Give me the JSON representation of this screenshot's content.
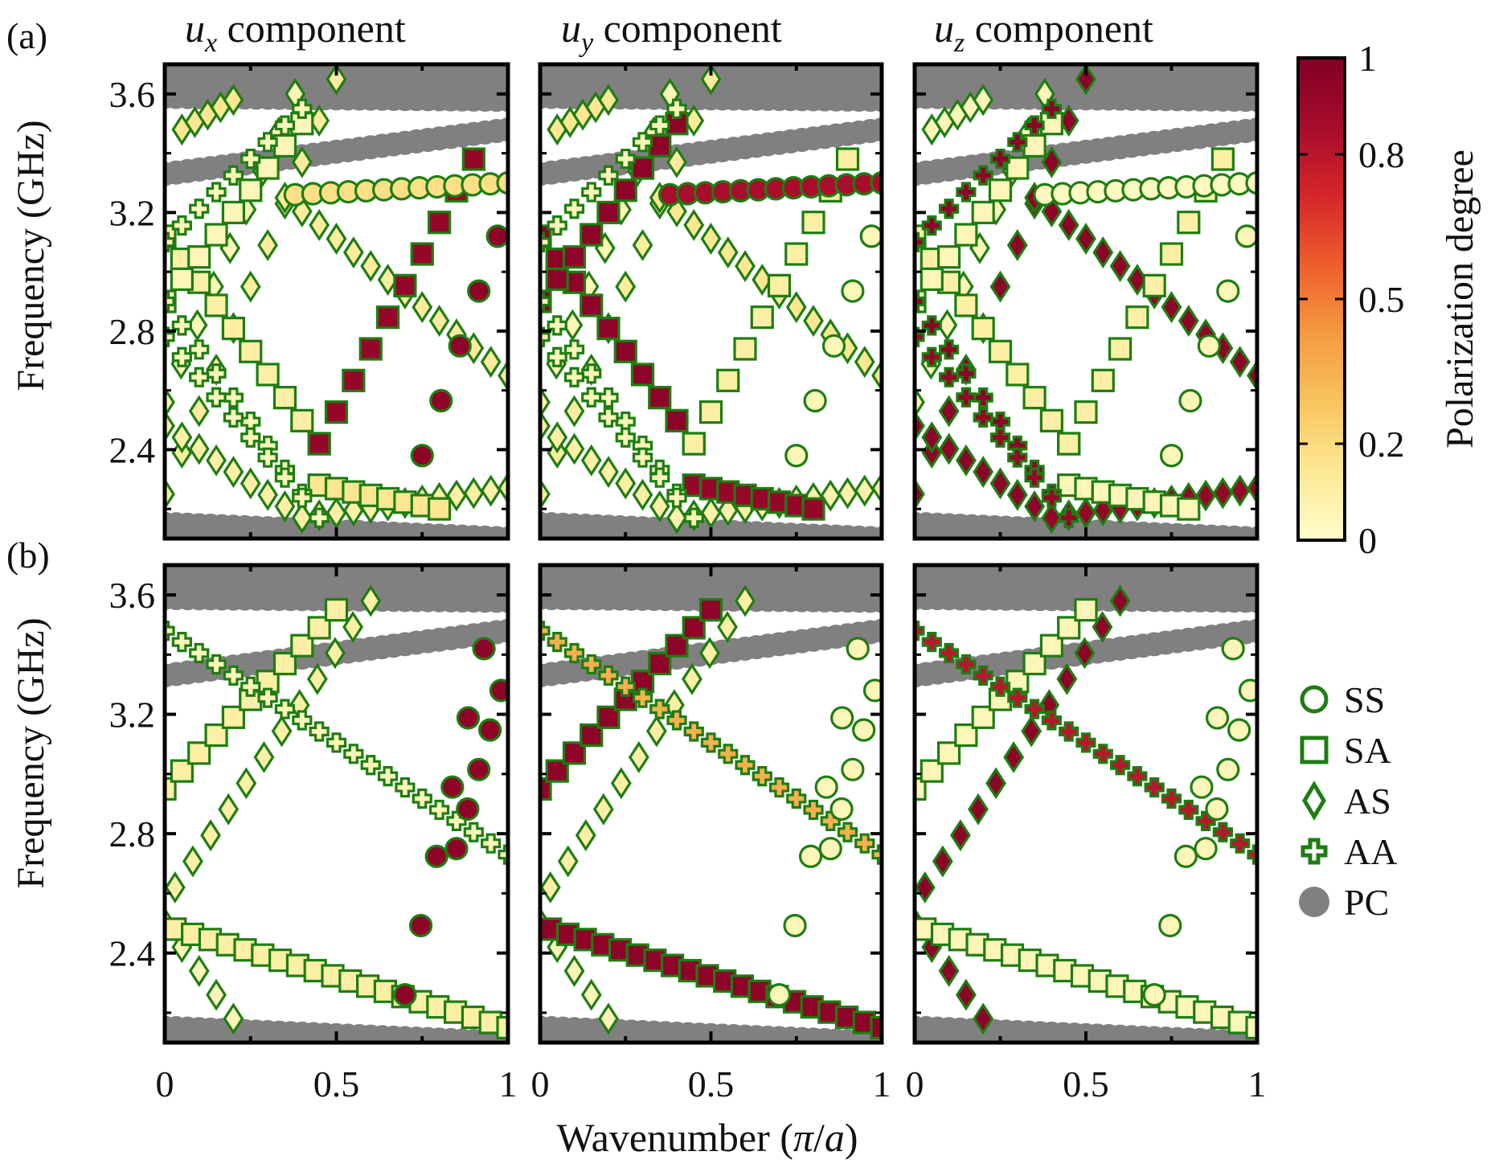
{
  "figure": {
    "panel_a_label": "(a)",
    "panel_b_label": "(b)",
    "col_titles": [
      {
        "var": "u",
        "sub": "x",
        "rest": " component"
      },
      {
        "var": "u",
        "sub": "y",
        "rest": " component"
      },
      {
        "var": "u",
        "sub": "z",
        "rest": " component"
      }
    ],
    "ylabel": "Frequency (GHz)",
    "xlabel_pre": "Wavenumber (",
    "xlabel_pi": "π",
    "xlabel_slash": "/",
    "xlabel_a": "a",
    "xlabel_post": ")",
    "xticks": [
      "0",
      "0.5",
      "1"
    ],
    "yticks": [
      "2.4",
      "2.8",
      "3.2",
      "3.6"
    ],
    "colorbar_label": "Polarization degree",
    "colorbar_ticks": [
      "0",
      "0.2",
      "0.5",
      "0.8",
      "1"
    ],
    "colorbar_values": [
      0,
      0.2,
      0.5,
      0.8,
      1
    ],
    "colors": {
      "marker_edge": "#1e7d12",
      "pc": "#808080",
      "cmap": [
        "#fffccc",
        "#fde995",
        "#f8c45c",
        "#f49a40",
        "#ef5e2c",
        "#d5262a",
        "#a60c2b",
        "#800026"
      ]
    },
    "legend": [
      {
        "symbol": "circle",
        "label": "SS"
      },
      {
        "symbol": "square",
        "label": "SA"
      },
      {
        "symbol": "diamond",
        "label": "AS"
      },
      {
        "symbol": "cross",
        "label": "AA"
      },
      {
        "symbol": "pc",
        "label": "PC"
      }
    ]
  },
  "chart_data": {
    "type": "scatter",
    "description_note": "Dispersion diagrams; frequency (GHz) vs wavenumber (pi/a); marker color = polarization degree of the respective component",
    "xlim": [
      0,
      1
    ],
    "ylim": [
      2.1,
      3.7
    ],
    "pc_bands": [
      {
        "name": "lower",
        "y0": 2.15,
        "y1": 2.1
      },
      {
        "name": "middle",
        "y0": 3.33,
        "y1": 3.48
      },
      {
        "name": "upper",
        "y0": 3.59,
        "y1": 3.58
      }
    ],
    "panels": {
      "a": {
        "branches": [
          {
            "sym": "diamond",
            "y0": 2.25,
            "y1": 3.65,
            "x_range": [
              0,
              0.5
            ],
            "pol": [
              0.12,
              0.12,
              0.95
            ]
          },
          {
            "sym": "diamond",
            "y0": 3.25,
            "y1": 2.65,
            "x_range": [
              0.35,
              1
            ],
            "pol": [
              0.12,
              0.15,
              0.95
            ]
          },
          {
            "sym": "diamond",
            "y0": 2.48,
            "y1": 2.17,
            "x_range": [
              0,
              0.4
            ],
            "pol": [
              0.1,
              0.1,
              0.95
            ]
          },
          {
            "sym": "diamond",
            "y0": 2.17,
            "y1": 2.27,
            "x_range": [
              0.4,
              1
            ],
            "pol": [
              0.1,
              0.08,
              0.92
            ]
          },
          {
            "sym": "diamond",
            "y0": 2.56,
            "y1": 3.6,
            "x_range": [
              0,
              0.38
            ],
            "pol": [
              0.05,
              0.05,
              0.05
            ]
          },
          {
            "sym": "diamond",
            "y0": 3.48,
            "y1": 3.58,
            "x_range": [
              0.05,
              0.2
            ],
            "pol": [
              0.15,
              0.15,
              0.05
            ]
          },
          {
            "sym": "square",
            "y0": 3.12,
            "y1": 2.42,
            "x_range": [
              0.0,
              0.45
            ],
            "pol": [
              0.1,
              0.95,
              0.1
            ]
          },
          {
            "sym": "square",
            "y0": 2.42,
            "y1": 3.38,
            "x_range": [
              0.45,
              0.9
            ],
            "pol": [
              0.92,
              0.1,
              0.1
            ]
          },
          {
            "sym": "square",
            "y0": 2.9,
            "y1": 3.5,
            "x_range": [
              0.0,
              0.4
            ],
            "pol": [
              0.05,
              0.95,
              0.05
            ]
          },
          {
            "sym": "square",
            "y0": 2.28,
            "y1": 2.2,
            "x_range": [
              0.45,
              0.8
            ],
            "pol": [
              0.15,
              0.92,
              0.05
            ]
          },
          {
            "sym": "circle",
            "y0": 3.26,
            "y1": 3.3,
            "x_range": [
              0.38,
              1
            ],
            "pol": [
              0.18,
              0.85,
              0.02
            ]
          },
          {
            "sym": "circle",
            "y0": 2.38,
            "y1": 3.12,
            "x_range": [
              0.75,
              0.97
            ],
            "pol": [
              0.95,
              0.05,
              0.05
            ]
          },
          {
            "sym": "cross",
            "y0": 2.9,
            "y1": 2.17,
            "x_range": [
              0.0,
              0.45
            ],
            "pol": [
              0.05,
              0.05,
              0.95
            ]
          },
          {
            "sym": "cross",
            "y0": 2.78,
            "y1": 2.17,
            "x_range": [
              0.0,
              0.45
            ],
            "pol": [
              0.05,
              0.05,
              0.92
            ]
          },
          {
            "sym": "cross",
            "y0": 3.1,
            "y1": 3.55,
            "x_range": [
              0.0,
              0.4
            ],
            "pol": [
              0.05,
              0.05,
              0.95
            ]
          }
        ]
      },
      "b": {
        "branches": [
          {
            "sym": "diamond",
            "y0": 2.62,
            "y1": 3.58,
            "x_range": [
              0.03,
              0.6
            ],
            "pol": [
              0.1,
              0.1,
              0.95
            ]
          },
          {
            "sym": "diamond",
            "y0": 2.5,
            "y1": 2.18,
            "x_range": [
              0.0,
              0.2
            ],
            "pol": [
              0.05,
              0.05,
              0.95
            ]
          },
          {
            "sym": "square",
            "y0": 2.95,
            "y1": 3.55,
            "x_range": [
              0.0,
              0.5
            ],
            "pol": [
              0.1,
              0.95,
              0.05
            ]
          },
          {
            "sym": "square",
            "y0": 2.48,
            "y1": 2.15,
            "x_range": [
              0.03,
              1
            ],
            "pol": [
              0.1,
              0.95,
              0.05
            ]
          },
          {
            "sym": "cross",
            "y0": 3.48,
            "y1": 2.73,
            "x_range": [
              0.0,
              1
            ],
            "pol": [
              0.05,
              0.35,
              0.8
            ]
          },
          {
            "sym": "circle",
            "y0": 2.26,
            "y1": 3.42,
            "x_range": [
              0.7,
              0.93
            ],
            "pol": [
              0.95,
              0.05,
              0.05
            ]
          },
          {
            "sym": "circle",
            "y0": 2.75,
            "y1": 3.28,
            "x_range": [
              0.85,
              0.98
            ],
            "pol": [
              0.95,
              0.05,
              0.05
            ]
          }
        ]
      }
    }
  }
}
